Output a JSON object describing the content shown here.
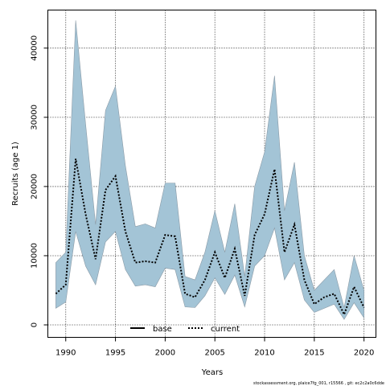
{
  "chart_data": {
    "type": "area",
    "title": "",
    "xlabel": "Years",
    "ylabel": "Recruits (age 1)",
    "xlim": [
      1988.2,
      2021.2
    ],
    "ylim": [
      -1800,
      45500
    ],
    "x_ticks": [
      1990,
      1995,
      2000,
      2005,
      2010,
      2015,
      2020
    ],
    "y_ticks": [
      0,
      10000,
      20000,
      30000,
      40000
    ],
    "grid": true,
    "legend_position": "bottom-center",
    "legend": [
      {
        "name": "base",
        "style": "solid"
      },
      {
        "name": "current",
        "style": "dotted"
      }
    ],
    "band_color": "#a3c4d6",
    "band_edge_color": "#8a9aa6",
    "series": [
      {
        "name": "current",
        "style": "dotted",
        "x": [
          1989,
          1990,
          1991,
          1992,
          1993,
          1994,
          1995,
          1996,
          1997,
          1998,
          1999,
          2000,
          2001,
          2002,
          2003,
          2004,
          2005,
          2006,
          2007,
          2008,
          2009,
          2010,
          2011,
          2012,
          2013,
          2014,
          2015,
          2016,
          2017,
          2018,
          2019,
          2020
        ],
        "y": [
          4500,
          5800,
          24000,
          16000,
          9500,
          19500,
          21500,
          13500,
          9000,
          9200,
          9000,
          13000,
          12800,
          4500,
          4000,
          6500,
          10500,
          6800,
          11000,
          4200,
          13000,
          16000,
          22500,
          10500,
          14500,
          6500,
          3000,
          4000,
          4500,
          1500,
          5500,
          2500
        ],
        "lower": [
          2400,
          3300,
          13500,
          8500,
          5800,
          12000,
          13500,
          8000,
          5600,
          5800,
          5500,
          8200,
          8000,
          2600,
          2500,
          4200,
          6800,
          4400,
          7200,
          2600,
          8500,
          10000,
          14000,
          6500,
          9000,
          3600,
          1800,
          2400,
          3000,
          800,
          3200,
          1000
        ],
        "upper": [
          9000,
          10500,
          44000,
          29000,
          14500,
          31000,
          34500,
          23000,
          14200,
          14600,
          14000,
          20500,
          20500,
          7000,
          6500,
          10500,
          16500,
          10500,
          17500,
          7000,
          20000,
          25000,
          36000,
          16500,
          23500,
          10000,
          5000,
          6500,
          8000,
          2500,
          10000,
          5000
        ]
      }
    ],
    "footer": "stockassessment.org, plaice7fg_001, r15566 , git: ec2c2a0c6dde"
  }
}
